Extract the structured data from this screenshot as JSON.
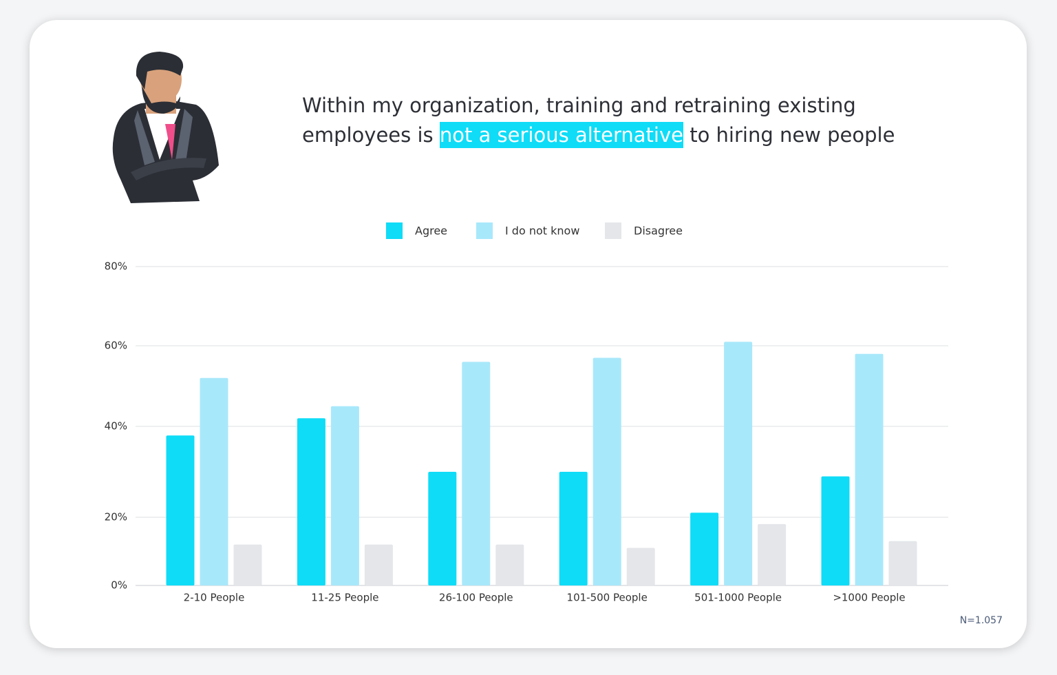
{
  "chart_data": {
    "type": "bar",
    "title": [
      "Within my organization, training and retraining existing",
      "employees is ",
      "not a serious alternative",
      " to hiring new people"
    ],
    "categories": [
      "2-10  People",
      "11-25 People",
      "26-100 People",
      "101-500 People",
      "501-1000 People",
      ">1000 People"
    ],
    "series": [
      {
        "name": "Agree",
        "color": "#0fdcf7",
        "values": [
          38,
          42,
          30,
          30,
          21,
          29
        ]
      },
      {
        "name": "I do not know",
        "color": "#a8e8fb",
        "values": [
          52,
          45,
          56,
          57,
          61,
          58
        ]
      },
      {
        "name": "Disagree",
        "color": "#e4e6ea",
        "values": [
          12,
          12,
          12,
          11,
          18,
          13
        ]
      }
    ],
    "ylim": [
      0,
      80
    ],
    "yticks": [
      {
        "value": 0,
        "label": "0%"
      },
      {
        "value": 20,
        "label": "20%"
      },
      {
        "value": 40,
        "label": "40%"
      },
      {
        "value": 60,
        "label": "60%"
      },
      {
        "value": 80,
        "label": "80%"
      }
    ],
    "grid": true,
    "annotation": "N=1.057"
  }
}
